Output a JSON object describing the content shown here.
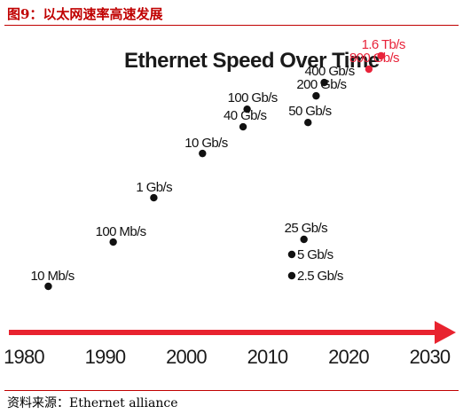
{
  "figure": {
    "title": "图9：以太网速率高速发展",
    "source": "资料来源：Ethernet alliance"
  },
  "colors": {
    "accent": "#c00000",
    "arrow": "#e8232f",
    "highlight": "#e8233a",
    "point": "#111111"
  },
  "chart_data": {
    "type": "scatter",
    "title": "Ethernet Speed Over Time",
    "xlabel": "",
    "ylabel": "",
    "xlim": [
      1978,
      2036
    ],
    "x_ticks": [
      "1980",
      "1990",
      "2000",
      "2010",
      "2020",
      "2030"
    ],
    "grid": false,
    "points": [
      {
        "year": 1983,
        "label": "10 Mb/s",
        "highlight": false
      },
      {
        "year": 1991,
        "label": "100 Mb/s",
        "highlight": false
      },
      {
        "year": 1996,
        "label": "1 Gb/s",
        "highlight": false
      },
      {
        "year": 2002,
        "label": "10 Gb/s",
        "highlight": false
      },
      {
        "year": 2007,
        "label": "40 Gb/s",
        "highlight": false
      },
      {
        "year": 2007.5,
        "label": "100 Gb/s",
        "highlight": false
      },
      {
        "year": 2013,
        "label": "2.5 Gb/s",
        "highlight": false
      },
      {
        "year": 2013,
        "label": "5 Gb/s",
        "highlight": false
      },
      {
        "year": 2014.5,
        "label": "25 Gb/s",
        "highlight": false
      },
      {
        "year": 2015,
        "label": "50 Gb/s",
        "highlight": false
      },
      {
        "year": 2016,
        "label": "200 Gb/s",
        "highlight": false
      },
      {
        "year": 2017,
        "label": "400 Gb/s",
        "highlight": false
      },
      {
        "year": 2022.5,
        "label": "800 Gb/s",
        "highlight": true
      },
      {
        "year": 2024,
        "label": "1.6 Tb/s",
        "highlight": true
      }
    ]
  }
}
